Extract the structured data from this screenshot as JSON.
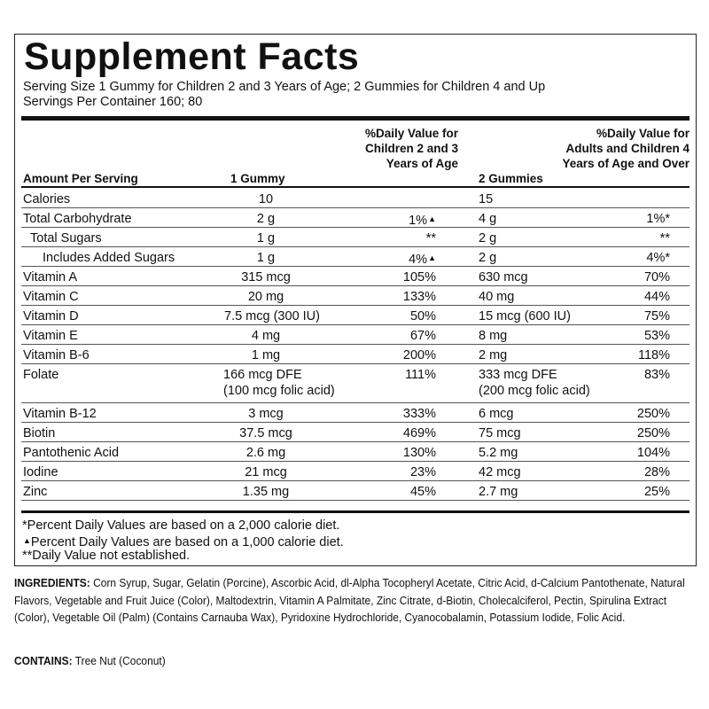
{
  "title": "Supplement Facts",
  "serving_size": "Serving Size 1 Gummy for Children 2 and 3 Years of Age; 2 Gummies for Children 4 and Up",
  "servings_per_container": "Servings Per Container 160; 80",
  "headers": {
    "amount": "Amount Per Serving",
    "one_gummy": "1 Gummy",
    "dv_children": "%Daily Value for Children 2 and 3 Years of Age",
    "two_gummies": "2 Gummies",
    "dv_adults": "%Daily Value for Adults and Children 4 Years of Age and Over"
  },
  "rows": [
    {
      "name": "Calories",
      "g1": "10",
      "dv1": "",
      "g2": "15",
      "dv2": ""
    },
    {
      "name": "Total Carbohydrate",
      "g1": "2 g",
      "dv1": "1%",
      "g2": "4 g",
      "dv2": "1%*"
    },
    {
      "name": "Total Sugars",
      "g1": "1 g",
      "dv1": "**",
      "g2": "2 g",
      "dv2": "**"
    },
    {
      "name": "Includes Added Sugars",
      "g1": "1 g",
      "dv1": "4%",
      "g2": "2 g",
      "dv2": "4%*"
    },
    {
      "name": "Vitamin A",
      "g1": "315 mcg",
      "dv1": "105%",
      "g2": "630 mcg",
      "dv2": "70%"
    },
    {
      "name": "Vitamin C",
      "g1": "20 mg",
      "dv1": "133%",
      "g2": "40 mg",
      "dv2": "44%"
    },
    {
      "name": "Vitamin D",
      "g1": "7.5 mcg (300 IU)",
      "dv1": "50%",
      "g2": "15 mcg (600 IU)",
      "dv2": "75%"
    },
    {
      "name": "Vitamin E",
      "g1": "4 mg",
      "dv1": "67%",
      "g2": "8 mg",
      "dv2": "53%"
    },
    {
      "name": "Vitamin B-6",
      "g1": "1 mg",
      "dv1": "200%",
      "g2": "2 mg",
      "dv2": "118%"
    },
    {
      "name": "Folate",
      "g1": "166 mcg DFE",
      "g1b": "(100 mcg folic acid)",
      "dv1": "111%",
      "g2": "333 mcg DFE",
      "g2b": "(200 mcg folic acid)",
      "dv2": "83%"
    },
    {
      "name": "Vitamin B-12",
      "g1": "3 mcg",
      "dv1": "333%",
      "g2": "6 mcg",
      "dv2": "250%"
    },
    {
      "name": "Biotin",
      "g1": "37.5 mcg",
      "dv1": "469%",
      "g2": "75 mcg",
      "dv2": "250%"
    },
    {
      "name": "Pantothenic Acid",
      "g1": "2.6 mg",
      "dv1": "130%",
      "g2": "5.2 mg",
      "dv2": "104%"
    },
    {
      "name": "Iodine",
      "g1": "21 mcg",
      "dv1": "23%",
      "g2": "42 mcg",
      "dv2": "28%"
    },
    {
      "name": "Zinc",
      "g1": "1.35 mg",
      "dv1": "45%",
      "g2": "2.7 mg",
      "dv2": "25%"
    }
  ],
  "triangle_mark": "▲",
  "footnotes": {
    "f1": "*Percent Daily Values are based on a 2,000 calorie diet.",
    "f2_mark": "▲",
    "f2": "Percent Daily Values are based on a 1,000 calorie diet.",
    "f3": "**Daily Value not established."
  },
  "ingredients": {
    "label": "INGREDIENTS:",
    "text": "Corn Syrup, Sugar, Gelatin (Porcine), Ascorbic Acid, dl-Alpha Tocopheryl Acetate, Citric Acid, d-Calcium Pantothenate, Natural Flavors, Vegetable and Fruit Juice (Color), Maltodextrin, Vitamin A Palmitate, Zinc Citrate, d-Biotin, Cholecalciferol, Pectin, Spirulina Extract (Color), Vegetable Oil (Palm) (Contains Carnauba Wax), Pyridoxine Hydrochloride, Cyanocobalamin, Potassium Iodide, Folic Acid."
  },
  "contains": {
    "label": "CONTAINS:",
    "text": "Tree Nut (Coconut)"
  }
}
